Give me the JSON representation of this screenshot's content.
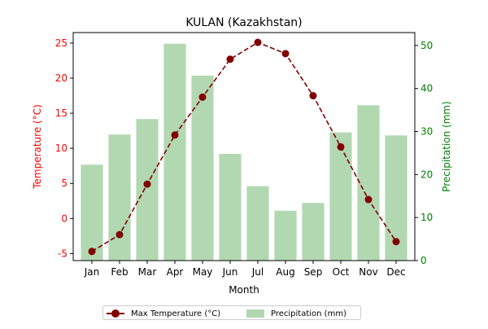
{
  "chart_data": {
    "type": "bar",
    "title": "KULAN (Kazakhstan)",
    "xlabel": "Month",
    "ylabel_left": "Temperature (°C)",
    "ylabel_right": "Precipitation (mm)",
    "categories": [
      "Jan",
      "Feb",
      "Mar",
      "Apr",
      "May",
      "Jun",
      "Jul",
      "Aug",
      "Sep",
      "Oct",
      "Nov",
      "Dec"
    ],
    "ylim_left": [
      -6,
      26.5
    ],
    "yticks_left": [
      -5,
      0,
      5,
      10,
      15,
      20,
      25
    ],
    "ylim_right": [
      0,
      53
    ],
    "yticks_right": [
      0,
      10,
      20,
      30,
      40,
      50
    ],
    "series": [
      {
        "name": "Max Temperature (°C)",
        "kind": "line",
        "axis": "left",
        "color": "#800000",
        "line_style": "dashed",
        "marker": "circle",
        "values": [
          -4.7,
          -2.3,
          4.9,
          11.9,
          17.3,
          22.7,
          25.1,
          23.5,
          17.5,
          10.2,
          2.7,
          -3.3
        ]
      },
      {
        "name": "Precipitation (mm)",
        "kind": "bar",
        "axis": "right",
        "color": "#b2d8b2",
        "values": [
          22.3,
          29.3,
          32.9,
          50.4,
          43.0,
          24.8,
          17.3,
          11.6,
          13.4,
          29.8,
          36.1,
          29.1
        ]
      }
    ],
    "left_axis_color": "#ff0000",
    "right_axis_color": "#008000",
    "grid": false,
    "legend_position": "bottom-center"
  }
}
